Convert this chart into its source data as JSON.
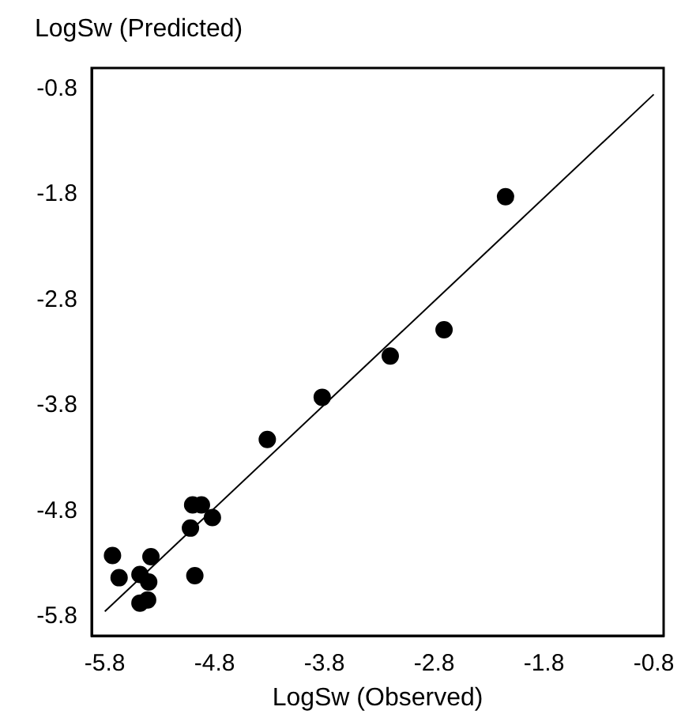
{
  "chart_data": {
    "type": "scatter",
    "ylabel": "LogSw (Predicted)",
    "xlabel": "LogSw (Observed)",
    "xlim": [
      -5.92,
      -0.71
    ],
    "ylim": [
      -5.98,
      -0.6
    ],
    "xticks": [
      -5.8,
      -4.8,
      -3.8,
      -2.8,
      -1.8,
      -0.8
    ],
    "yticks": [
      -5.8,
      -4.8,
      -3.8,
      -2.8,
      -1.8,
      -0.8
    ],
    "grid": false,
    "legend": false,
    "marker": "circle",
    "series": [
      {
        "color": "#000000",
        "x": [
          -5.73,
          -5.67,
          -5.48,
          -5.38,
          -5.4,
          -5.48,
          -5.41,
          -5.0,
          -4.92,
          -4.82,
          -5.02,
          -4.98,
          -4.32,
          -3.82,
          -3.2,
          -2.71,
          -2.15
        ],
        "values": [
          -5.22,
          -5.43,
          -5.4,
          -5.23,
          -5.47,
          -5.67,
          -5.64,
          -4.74,
          -4.74,
          -4.86,
          -4.96,
          -5.41,
          -4.12,
          -3.72,
          -3.33,
          -3.08,
          -1.82
        ]
      },
      {
        "type": "line",
        "color": "#000000",
        "marker": "none",
        "line_style": "solid",
        "x": [
          -5.8,
          -0.8
        ],
        "values": [
          -5.75,
          -0.85
        ]
      }
    ]
  }
}
